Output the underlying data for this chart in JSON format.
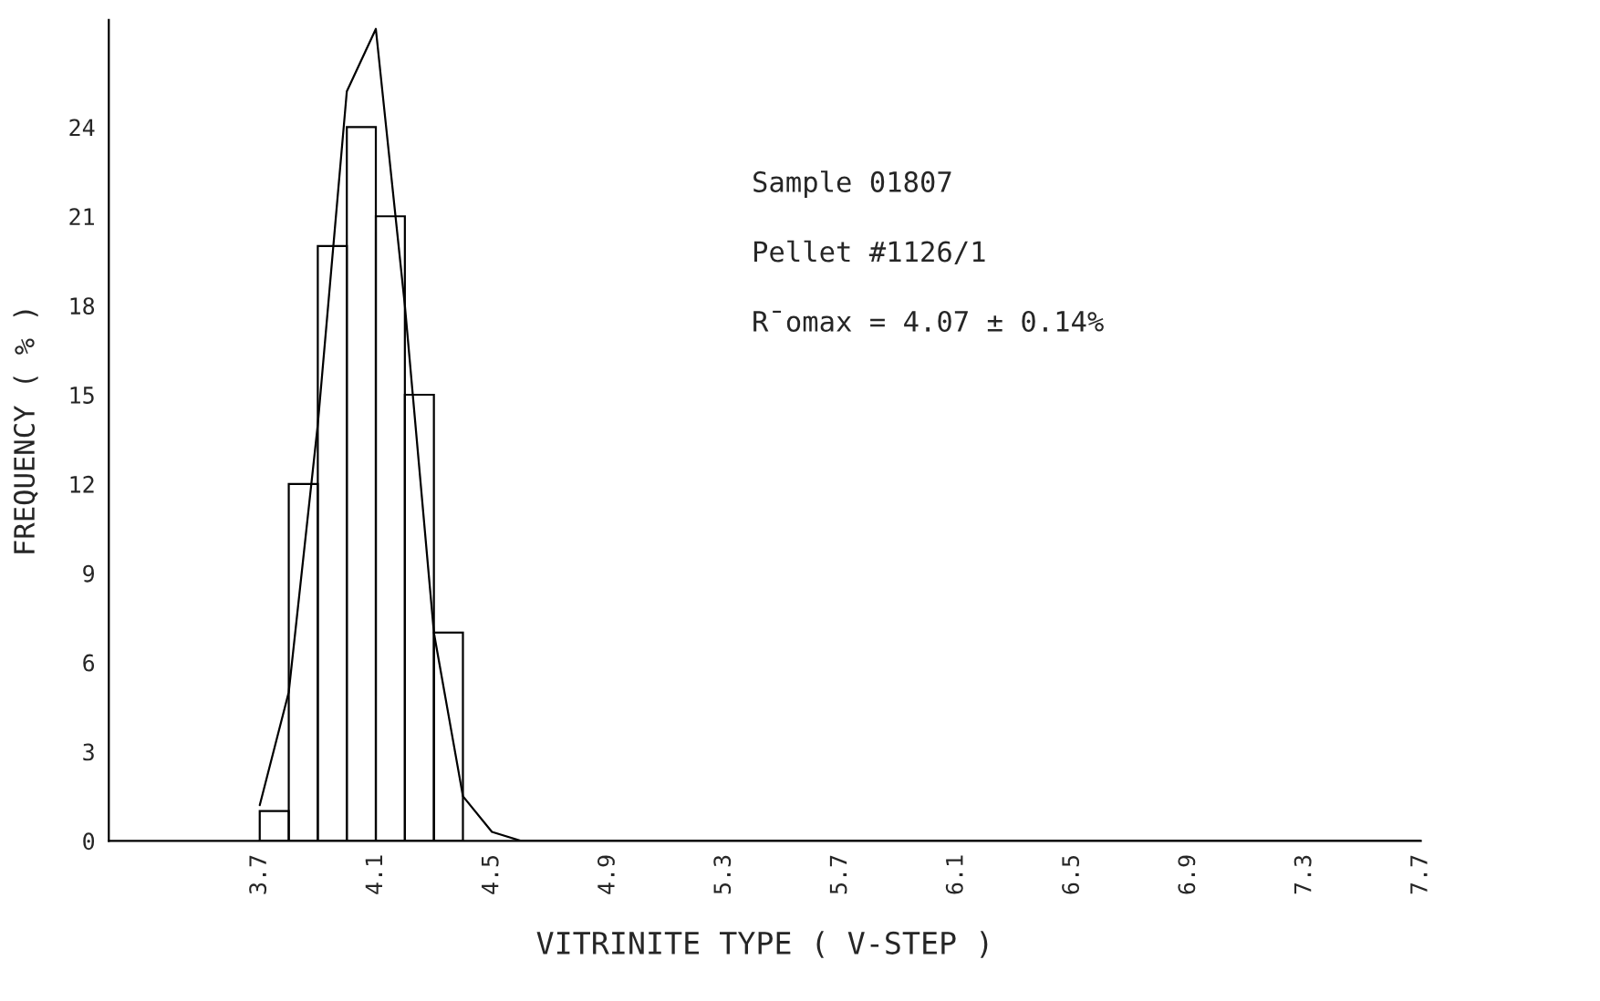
{
  "chart_data": {
    "type": "histogram",
    "xlabel": "VITRINITE TYPE ( V-STEP )",
    "ylabel": "FREQUENCY ( % )",
    "series": [
      {
        "color": "#000000",
        "bins": [
          3.7,
          3.8,
          3.9,
          4.0,
          4.1,
          4.2,
          4.3,
          4.4
        ],
        "values": [
          1,
          12,
          20,
          24,
          21,
          15,
          7
        ]
      },
      {
        "type": "line",
        "color": "#000000",
        "x": [
          3.7,
          3.8,
          3.9,
          4.0,
          4.1,
          4.2,
          4.3,
          4.4,
          4.5,
          4.6,
          7.7
        ],
        "values": [
          1.2,
          5,
          14,
          25.2,
          27.3,
          18,
          7,
          1.5,
          0.3,
          0,
          0
        ]
      }
    ],
    "xlim": [
      3.18,
      7.7
    ],
    "xticks": [
      3.7,
      4.1,
      4.5,
      4.9,
      5.3,
      5.7,
      6.1,
      6.5,
      6.9,
      7.3,
      7.7
    ],
    "ylim": [
      0,
      27.6
    ],
    "yticks": [
      0,
      3,
      6,
      9,
      12,
      15,
      18,
      21,
      24
    ],
    "grid": false,
    "legend": false,
    "annotations": [
      "Sample 01807",
      "Pellet #1126/1",
      "R̄omax = 4.07 ± 0.14%"
    ]
  }
}
